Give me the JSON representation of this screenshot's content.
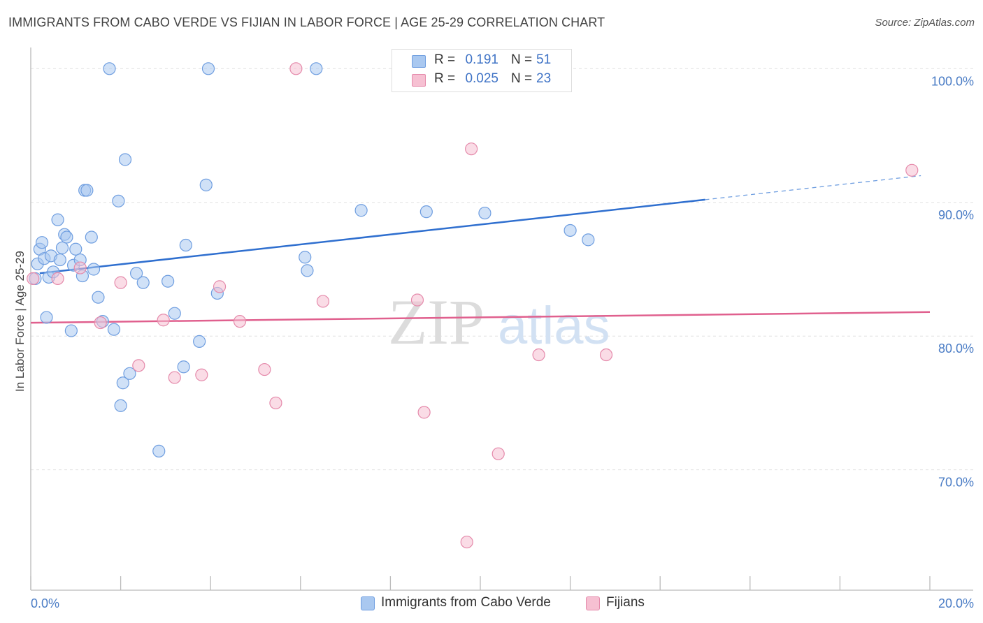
{
  "title": "IMMIGRANTS FROM CABO VERDE VS FIJIAN IN LABOR FORCE | AGE 25-29 CORRELATION CHART",
  "source": "Source: ZipAtlas.com",
  "watermark": {
    "zip": "ZIP",
    "atlas": "atlas"
  },
  "legend": {
    "rows": [
      {
        "r_label": "R =",
        "r_value": "0.191",
        "n_label": "N =",
        "n_value": "51",
        "color": "#a9c8f0",
        "border": "#6f9ee0"
      },
      {
        "r_label": "R =",
        "r_value": "0.025",
        "n_label": "N =",
        "n_value": "23",
        "color": "#f6c0d2",
        "border": "#e58aab"
      }
    ]
  },
  "bottom_legend": [
    {
      "label": "Immigrants from Cabo Verde",
      "color": "#a9c8f0",
      "border": "#6f9ee0"
    },
    {
      "label": "Fijians",
      "color": "#f6c0d2",
      "border": "#e58aab"
    }
  ],
  "chart_data": {
    "type": "scatter",
    "title": "IMMIGRANTS FROM CABO VERDE VS FIJIAN IN LABOR FORCE | AGE 25-29 CORRELATION CHART",
    "xlabel": "",
    "ylabel": "In Labor Force | Age 25-29",
    "xlim": [
      0,
      20
    ],
    "ylim": [
      61,
      102
    ],
    "x_tick_labels": [
      "0.0%",
      "20.0%"
    ],
    "y_ticks": [
      70,
      80,
      90,
      100
    ],
    "y_tick_labels": [
      "70.0%",
      "80.0%",
      "90.0%",
      "100.0%"
    ],
    "grid": true,
    "series": [
      {
        "name": "Immigrants from Cabo Verde",
        "color": "#6f9ee0",
        "fill": "#a9c8f0",
        "trend": {
          "x0": 0.2,
          "y0": 84.7,
          "x1": 15.0,
          "y1": 90.2,
          "dash_to_x": 19.8,
          "dash_to_y": 92.0
        },
        "points": [
          [
            0.1,
            84.3
          ],
          [
            0.15,
            85.4
          ],
          [
            0.2,
            86.5
          ],
          [
            0.25,
            87.0
          ],
          [
            0.3,
            85.8
          ],
          [
            0.35,
            81.4
          ],
          [
            0.4,
            84.4
          ],
          [
            0.45,
            86.0
          ],
          [
            0.5,
            84.8
          ],
          [
            0.6,
            88.7
          ],
          [
            0.65,
            85.7
          ],
          [
            0.7,
            86.6
          ],
          [
            0.75,
            87.6
          ],
          [
            0.8,
            87.4
          ],
          [
            0.9,
            80.4
          ],
          [
            0.95,
            85.3
          ],
          [
            1.0,
            86.5
          ],
          [
            1.1,
            85.7
          ],
          [
            1.15,
            84.5
          ],
          [
            1.2,
            90.9
          ],
          [
            1.25,
            90.9
          ],
          [
            1.35,
            87.4
          ],
          [
            1.4,
            85.0
          ],
          [
            1.5,
            82.9
          ],
          [
            1.6,
            81.1
          ],
          [
            1.75,
            100.0
          ],
          [
            1.85,
            80.5
          ],
          [
            1.95,
            90.1
          ],
          [
            2.0,
            74.8
          ],
          [
            2.05,
            76.5
          ],
          [
            2.1,
            93.2
          ],
          [
            2.2,
            77.2
          ],
          [
            2.35,
            84.7
          ],
          [
            2.5,
            84.0
          ],
          [
            2.85,
            71.4
          ],
          [
            3.05,
            84.1
          ],
          [
            3.2,
            81.7
          ],
          [
            3.4,
            77.7
          ],
          [
            3.45,
            86.8
          ],
          [
            3.75,
            79.6
          ],
          [
            3.9,
            91.3
          ],
          [
            3.95,
            100.0
          ],
          [
            4.15,
            83.2
          ],
          [
            6.1,
            85.9
          ],
          [
            6.15,
            84.9
          ],
          [
            6.35,
            100.0
          ],
          [
            7.35,
            89.4
          ],
          [
            8.8,
            89.3
          ],
          [
            10.1,
            89.2
          ],
          [
            12.0,
            87.9
          ],
          [
            12.4,
            87.2
          ]
        ]
      },
      {
        "name": "Fijians",
        "color": "#e58aab",
        "fill": "#f6c0d2",
        "trend": {
          "x0": 0.0,
          "y0": 81.0,
          "x1": 20.0,
          "y1": 81.8
        },
        "points": [
          [
            0.05,
            84.3
          ],
          [
            0.6,
            84.3
          ],
          [
            1.1,
            85.1
          ],
          [
            1.55,
            81.0
          ],
          [
            2.0,
            84.0
          ],
          [
            2.4,
            77.8
          ],
          [
            2.95,
            81.2
          ],
          [
            3.2,
            76.9
          ],
          [
            3.8,
            77.1
          ],
          [
            4.2,
            83.7
          ],
          [
            4.65,
            81.1
          ],
          [
            5.2,
            77.5
          ],
          [
            5.45,
            75.0
          ],
          [
            5.9,
            100.0
          ],
          [
            6.5,
            82.6
          ],
          [
            8.6,
            82.7
          ],
          [
            8.75,
            74.3
          ],
          [
            9.7,
            64.6
          ],
          [
            9.8,
            94.0
          ],
          [
            10.4,
            71.2
          ],
          [
            11.3,
            78.6
          ],
          [
            12.8,
            78.6
          ],
          [
            19.6,
            92.4
          ]
        ]
      }
    ]
  }
}
